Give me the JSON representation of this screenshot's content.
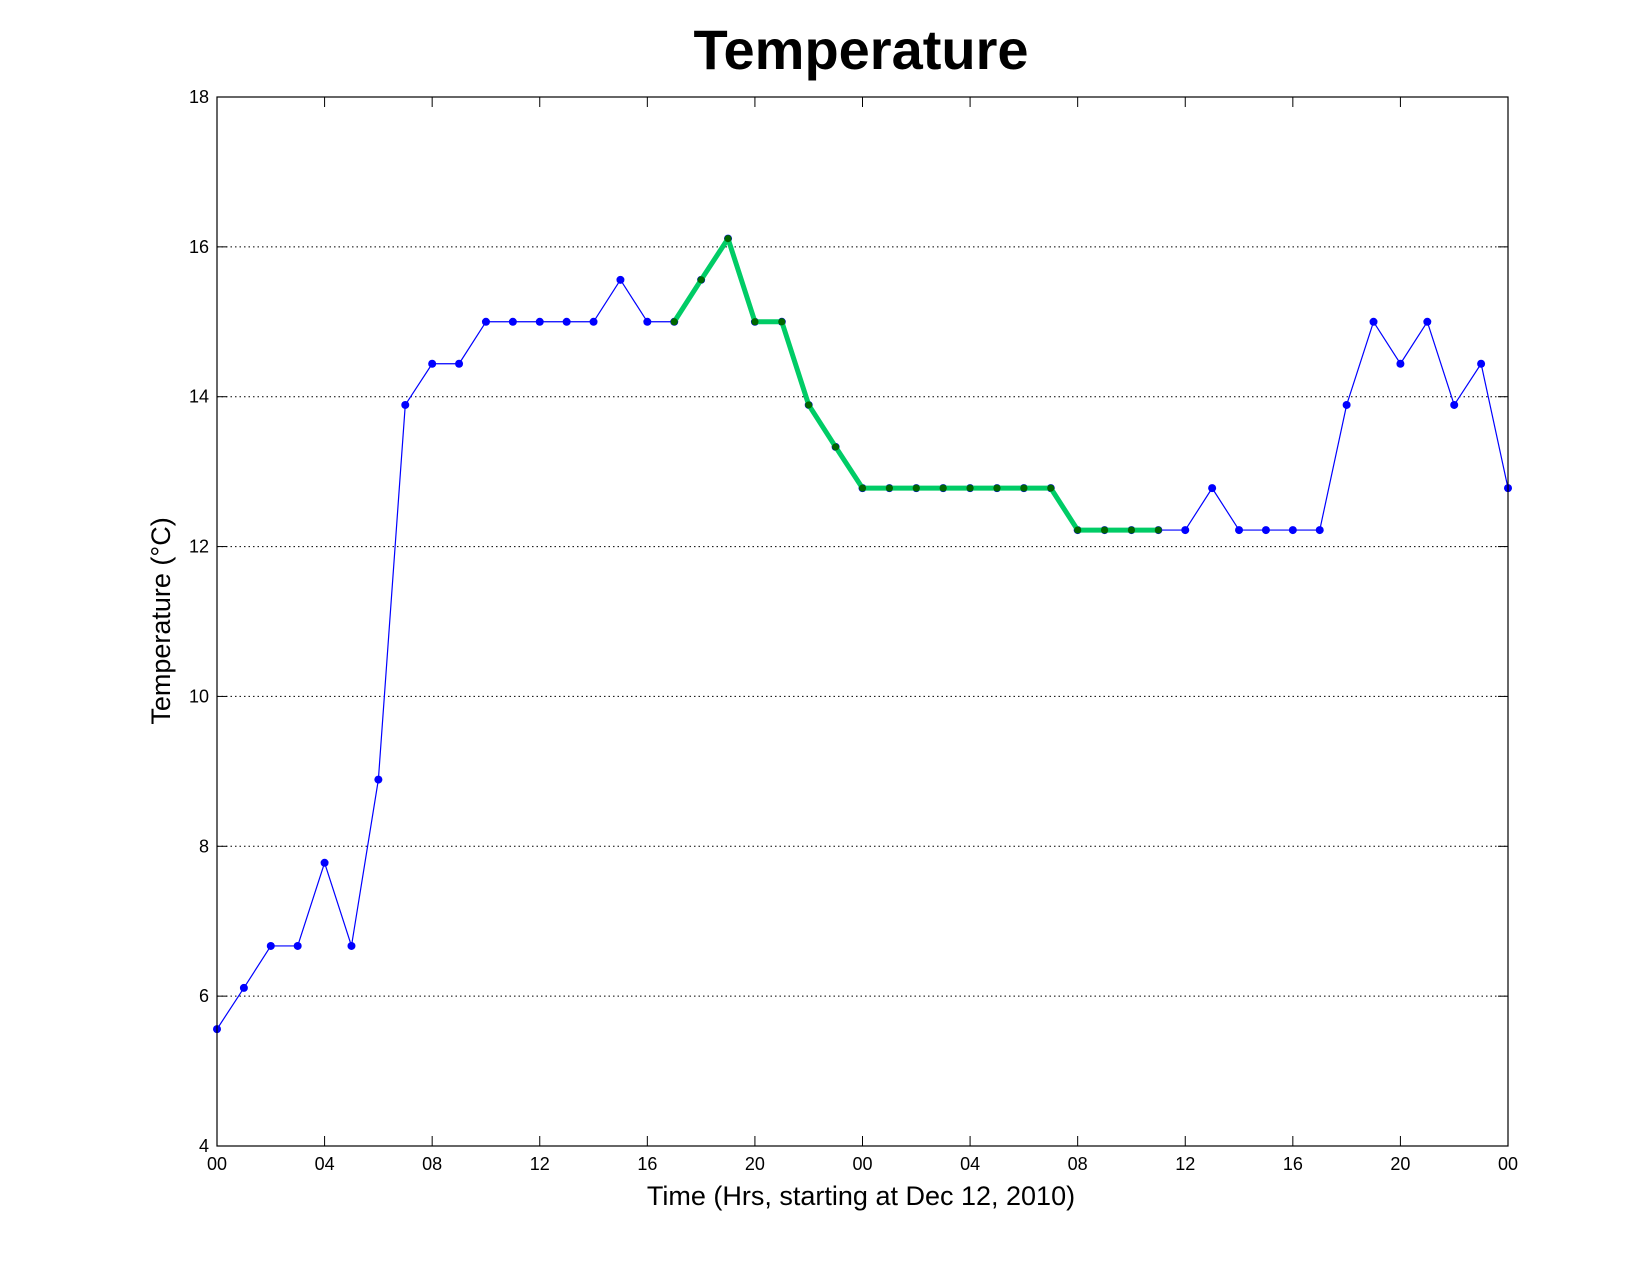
{
  "chart_data": {
    "type": "line",
    "title": "Temperature",
    "xlabel": "Time (Hrs, starting at Dec 12, 2010)",
    "ylabel": "Temperature (°C)",
    "xlim": [
      0,
      48
    ],
    "ylim": [
      4,
      18
    ],
    "grid": "horizontal-dotted",
    "x_ticks": [
      {
        "value": 0,
        "label": "00"
      },
      {
        "value": 4,
        "label": "04"
      },
      {
        "value": 8,
        "label": "08"
      },
      {
        "value": 12,
        "label": "12"
      },
      {
        "value": 16,
        "label": "16"
      },
      {
        "value": 20,
        "label": "20"
      },
      {
        "value": 24,
        "label": "00"
      },
      {
        "value": 28,
        "label": "04"
      },
      {
        "value": 32,
        "label": "08"
      },
      {
        "value": 36,
        "label": "12"
      },
      {
        "value": 40,
        "label": "16"
      },
      {
        "value": 44,
        "label": "20"
      },
      {
        "value": 48,
        "label": "00"
      }
    ],
    "y_ticks": [
      4,
      6,
      8,
      10,
      12,
      14,
      16,
      18
    ],
    "series": [
      {
        "color": "#0000ff",
        "marker_color": "#0000ff",
        "style": "thin-line-dots",
        "x": [
          0,
          1,
          2,
          3,
          4,
          5,
          6,
          7,
          8,
          9,
          10,
          11,
          12,
          13,
          14,
          15,
          16,
          17,
          18,
          19,
          20,
          21,
          22,
          23,
          24,
          25,
          26,
          27,
          28,
          29,
          30,
          31,
          32,
          33,
          34,
          35,
          36,
          37,
          38,
          39,
          40,
          41,
          42,
          43,
          44,
          45,
          46,
          47,
          48
        ],
        "values": [
          5.56,
          6.11,
          6.67,
          6.67,
          7.78,
          6.67,
          8.89,
          13.89,
          14.44,
          14.44,
          15.0,
          15.0,
          15.0,
          15.0,
          15.0,
          15.56,
          15.0,
          15.0,
          15.56,
          16.11,
          15.0,
          15.0,
          13.89,
          13.33,
          12.78,
          12.78,
          12.78,
          12.78,
          12.78,
          12.78,
          12.78,
          12.78,
          12.22,
          12.22,
          12.22,
          12.22,
          12.22,
          12.78,
          12.22,
          12.22,
          12.22,
          12.22,
          13.89,
          15.0,
          14.44,
          15.0,
          13.89,
          14.44,
          12.78
        ]
      },
      {
        "color": "#00cc66",
        "marker_color": "#006600",
        "style": "thick-line-dots",
        "x": [
          17,
          18,
          19,
          20,
          21,
          22,
          23,
          24,
          25,
          26,
          27,
          28,
          29,
          30,
          31,
          32,
          33,
          34,
          35
        ],
        "values": [
          15.0,
          15.56,
          16.11,
          15.0,
          15.0,
          13.89,
          13.33,
          12.78,
          12.78,
          12.78,
          12.78,
          12.78,
          12.78,
          12.78,
          12.78,
          12.22,
          12.22,
          12.22,
          12.22
        ]
      }
    ]
  }
}
